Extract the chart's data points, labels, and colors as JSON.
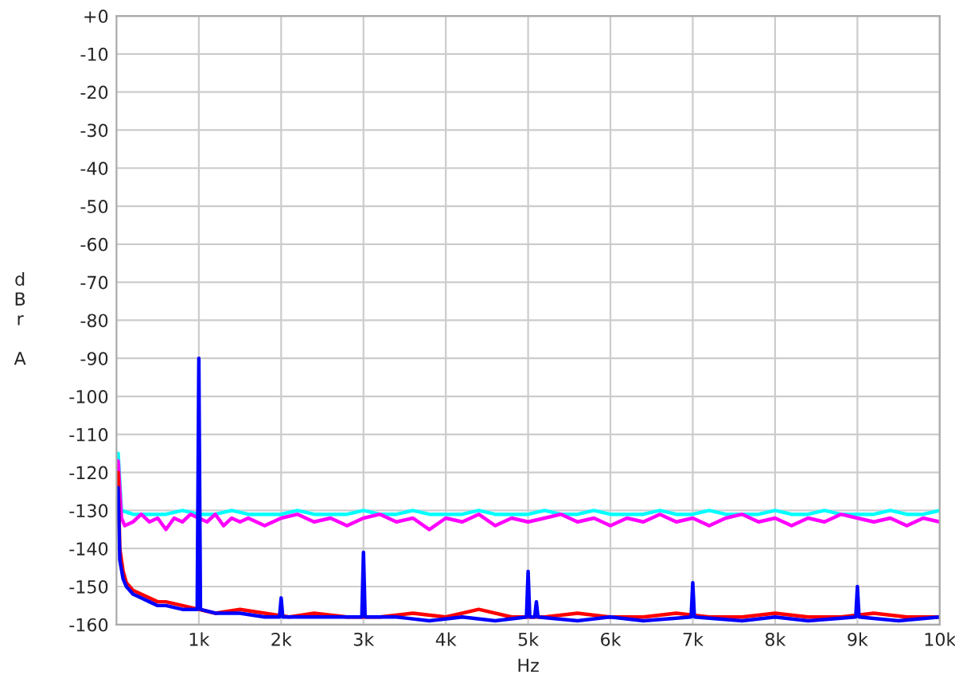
{
  "chart_data": {
    "type": "line",
    "xlabel": "Hz",
    "ylabel": "dBr A",
    "xlim": [
      0,
      10000
    ],
    "ylim": [
      -160,
      0
    ],
    "xticks": [
      {
        "value": 1000,
        "label": "1k"
      },
      {
        "value": 2000,
        "label": "2k"
      },
      {
        "value": 3000,
        "label": "3k"
      },
      {
        "value": 4000,
        "label": "4k"
      },
      {
        "value": 5000,
        "label": "5k"
      },
      {
        "value": 6000,
        "label": "6k"
      },
      {
        "value": 7000,
        "label": "7k"
      },
      {
        "value": 8000,
        "label": "8k"
      },
      {
        "value": 9000,
        "label": "9k"
      },
      {
        "value": 10000,
        "label": "10k"
      }
    ],
    "yticks": [
      {
        "value": 0,
        "label": "+0"
      },
      -10,
      -20,
      -30,
      -40,
      -50,
      -60,
      -70,
      -80,
      -90,
      -100,
      -110,
      -120,
      -130,
      -140,
      -150,
      -160
    ],
    "grid": true,
    "marker": "none",
    "line_style": "solid",
    "series": [
      {
        "color": "#00ffff",
        "x": [
          20,
          60,
          200,
          400,
          600,
          800,
          1000,
          1200,
          1400,
          1600,
          1800,
          2000,
          2200,
          2400,
          2600,
          2800,
          3000,
          3200,
          3400,
          3600,
          3800,
          4000,
          4200,
          4400,
          4600,
          4800,
          5000,
          5200,
          5400,
          5600,
          5800,
          6000,
          6200,
          6400,
          6600,
          6800,
          7000,
          7200,
          7400,
          7600,
          7800,
          8000,
          8200,
          8400,
          8600,
          8800,
          9000,
          9200,
          9400,
          9600,
          9800,
          10000
        ],
        "values": [
          -115,
          -130,
          -131,
          -131,
          -131,
          -130,
          -131,
          -131,
          -130,
          -131,
          -131,
          -131,
          -130,
          -131,
          -131,
          -131,
          -130,
          -131,
          -131,
          -130,
          -131,
          -131,
          -131,
          -130,
          -131,
          -131,
          -131,
          -130,
          -131,
          -131,
          -130,
          -131,
          -131,
          -131,
          -130,
          -131,
          -131,
          -130,
          -131,
          -131,
          -131,
          -130,
          -131,
          -131,
          -130,
          -131,
          -131,
          -131,
          -130,
          -131,
          -131,
          -130
        ]
      },
      {
        "color": "#ff00ff",
        "x": [
          20,
          60,
          100,
          200,
          300,
          400,
          500,
          600,
          700,
          800,
          900,
          1000,
          1100,
          1200,
          1300,
          1400,
          1500,
          1600,
          1800,
          2000,
          2200,
          2400,
          2600,
          2800,
          3000,
          3200,
          3400,
          3600,
          3800,
          4000,
          4200,
          4400,
          4600,
          4800,
          5000,
          5200,
          5400,
          5600,
          5800,
          6000,
          6200,
          6400,
          6600,
          6800,
          7000,
          7200,
          7400,
          7600,
          7800,
          8000,
          8200,
          8400,
          8600,
          8800,
          9000,
          9200,
          9400,
          9600,
          9800,
          10000
        ],
        "values": [
          -117,
          -132,
          -134,
          -133,
          -131,
          -133,
          -132,
          -135,
          -132,
          -133,
          -131,
          -132,
          -133,
          -131,
          -134,
          -132,
          -133,
          -132,
          -134,
          -132,
          -131,
          -133,
          -132,
          -134,
          -132,
          -131,
          -133,
          -132,
          -135,
          -132,
          -133,
          -131,
          -134,
          -132,
          -133,
          -132,
          -131,
          -133,
          -132,
          -134,
          -132,
          -133,
          -131,
          -133,
          -132,
          -134,
          -132,
          -131,
          -133,
          -132,
          -134,
          -132,
          -133,
          -131,
          -132,
          -133,
          -132,
          -134,
          -132,
          -133
        ]
      },
      {
        "color": "#ff0000",
        "x": [
          20,
          40,
          80,
          120,
          160,
          200,
          300,
          400,
          500,
          600,
          800,
          1000,
          1200,
          1500,
          1800,
          2100,
          2400,
          2800,
          3200,
          3600,
          4000,
          4400,
          4800,
          5200,
          5600,
          6000,
          6400,
          6800,
          7200,
          7600,
          8000,
          8400,
          8800,
          9200,
          9600,
          10000
        ],
        "values": [
          -120,
          -140,
          -146,
          -149,
          -150,
          -151,
          -152,
          -153,
          -154,
          -154,
          -155,
          -156,
          -157,
          -156,
          -157,
          -158,
          -157,
          -158,
          -158,
          -157,
          -158,
          -156,
          -158,
          -158,
          -157,
          -158,
          -158,
          -157,
          -158,
          -158,
          -157,
          -158,
          -158,
          -157,
          -158,
          -158
        ]
      },
      {
        "color": "#0000ff",
        "x": [
          20,
          40,
          80,
          120,
          160,
          200,
          300,
          400,
          500,
          600,
          800,
          980,
          1000,
          1020,
          1200,
          1500,
          1800,
          1980,
          2000,
          2020,
          2400,
          2800,
          2980,
          3000,
          3020,
          3400,
          3800,
          4200,
          4600,
          4980,
          5000,
          5020,
          5080,
          5100,
          5120,
          5600,
          6000,
          6400,
          6980,
          7000,
          7020,
          7600,
          8000,
          8400,
          8980,
          9000,
          9020,
          9500,
          10000
        ],
        "values": [
          -124,
          -143,
          -148,
          -150,
          -151,
          -152,
          -153,
          -154,
          -155,
          -155,
          -156,
          -156,
          -90,
          -156,
          -157,
          -157,
          -158,
          -158,
          -153,
          -158,
          -158,
          -158,
          -158,
          -141,
          -158,
          -158,
          -159,
          -158,
          -159,
          -158,
          -146,
          -158,
          -158,
          -154,
          -158,
          -159,
          -158,
          -159,
          -158,
          -149,
          -158,
          -159,
          -158,
          -159,
          -158,
          -150,
          -158,
          -159,
          -158
        ]
      }
    ]
  }
}
